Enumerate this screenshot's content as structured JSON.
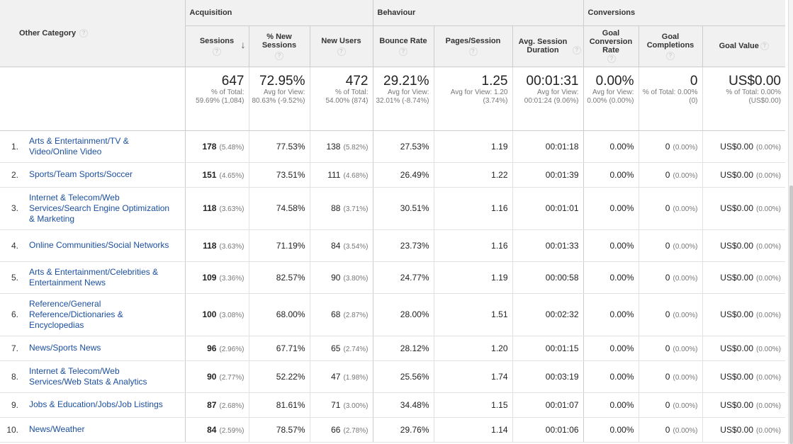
{
  "header": {
    "dimension": "Other Category",
    "groups": {
      "acquisition": "Acquisition",
      "behaviour": "Behaviour",
      "conversions": "Conversions"
    },
    "columns": {
      "sessions": "Sessions",
      "pct_new_sessions": "% New Sessions",
      "new_users": "New Users",
      "bounce_rate": "Bounce Rate",
      "pages_session": "Pages/Session",
      "avg_session_duration": "Avg. Session Duration",
      "goal_conversion_rate": "Goal Conversion Rate",
      "goal_completions": "Goal Completions",
      "goal_value": "Goal Value"
    },
    "help": "?",
    "sort_icon": "↓"
  },
  "totals": {
    "sessions": {
      "value": "647",
      "sub": "% of Total: 59.69% (1,084)"
    },
    "pct_new_sessions": {
      "value": "72.95%",
      "sub": "Avg for View: 80.63% (-9.52%)"
    },
    "new_users": {
      "value": "472",
      "sub": "% of Total: 54.00% (874)"
    },
    "bounce_rate": {
      "value": "29.21%",
      "sub": "Avg for View: 32.01% (-8.74%)"
    },
    "pages_session": {
      "value": "1.25",
      "sub": "Avg for View: 1.20 (3.74%)"
    },
    "avg_session_duration": {
      "value": "00:01:31",
      "sub": "Avg for View: 00:01:24 (9.06%)"
    },
    "goal_conversion_rate": {
      "value": "0.00%",
      "sub": "Avg for View: 0.00% (0.00%)"
    },
    "goal_completions": {
      "value": "0",
      "sub": "% of Total: 0.00% (0)"
    },
    "goal_value": {
      "value": "US$0.00",
      "sub": "% of Total: 0.00% (US$0.00)"
    }
  },
  "rows": [
    {
      "idx": "1.",
      "category": "Arts & Entertainment/TV & Video/Online Video",
      "sessions": "178",
      "sessions_pct": "(5.48%)",
      "pct_new": "77.53%",
      "new_users": "138",
      "new_users_pct": "(5.82%)",
      "bounce": "27.53%",
      "pages": "1.19",
      "duration": "00:01:18",
      "conv_rate": "0.00%",
      "completions": "0",
      "completions_pct": "(0.00%)",
      "value": "US$0.00",
      "value_pct": "(0.00%)"
    },
    {
      "idx": "2.",
      "category": "Sports/Team Sports/Soccer",
      "sessions": "151",
      "sessions_pct": "(4.65%)",
      "pct_new": "73.51%",
      "new_users": "111",
      "new_users_pct": "(4.68%)",
      "bounce": "26.49%",
      "pages": "1.22",
      "duration": "00:01:39",
      "conv_rate": "0.00%",
      "completions": "0",
      "completions_pct": "(0.00%)",
      "value": "US$0.00",
      "value_pct": "(0.00%)"
    },
    {
      "idx": "3.",
      "category": "Internet & Telecom/Web Services/Search Engine Optimization & Marketing",
      "sessions": "118",
      "sessions_pct": "(3.63%)",
      "pct_new": "74.58%",
      "new_users": "88",
      "new_users_pct": "(3.71%)",
      "bounce": "30.51%",
      "pages": "1.16",
      "duration": "00:01:01",
      "conv_rate": "0.00%",
      "completions": "0",
      "completions_pct": "(0.00%)",
      "value": "US$0.00",
      "value_pct": "(0.00%)"
    },
    {
      "idx": "4.",
      "category": "Online Communities/Social Networks",
      "sessions": "118",
      "sessions_pct": "(3.63%)",
      "pct_new": "71.19%",
      "new_users": "84",
      "new_users_pct": "(3.54%)",
      "bounce": "23.73%",
      "pages": "1.16",
      "duration": "00:01:33",
      "conv_rate": "0.00%",
      "completions": "0",
      "completions_pct": "(0.00%)",
      "value": "US$0.00",
      "value_pct": "(0.00%)"
    },
    {
      "idx": "5.",
      "category": "Arts & Entertainment/Celebrities & Entertainment News",
      "sessions": "109",
      "sessions_pct": "(3.36%)",
      "pct_new": "82.57%",
      "new_users": "90",
      "new_users_pct": "(3.80%)",
      "bounce": "24.77%",
      "pages": "1.19",
      "duration": "00:00:58",
      "conv_rate": "0.00%",
      "completions": "0",
      "completions_pct": "(0.00%)",
      "value": "US$0.00",
      "value_pct": "(0.00%)"
    },
    {
      "idx": "6.",
      "category": "Reference/General Reference/Dictionaries & Encyclopedias",
      "sessions": "100",
      "sessions_pct": "(3.08%)",
      "pct_new": "68.00%",
      "new_users": "68",
      "new_users_pct": "(2.87%)",
      "bounce": "28.00%",
      "pages": "1.51",
      "duration": "00:02:32",
      "conv_rate": "0.00%",
      "completions": "0",
      "completions_pct": "(0.00%)",
      "value": "US$0.00",
      "value_pct": "(0.00%)"
    },
    {
      "idx": "7.",
      "category": "News/Sports News",
      "sessions": "96",
      "sessions_pct": "(2.96%)",
      "pct_new": "67.71%",
      "new_users": "65",
      "new_users_pct": "(2.74%)",
      "bounce": "28.12%",
      "pages": "1.20",
      "duration": "00:01:15",
      "conv_rate": "0.00%",
      "completions": "0",
      "completions_pct": "(0.00%)",
      "value": "US$0.00",
      "value_pct": "(0.00%)"
    },
    {
      "idx": "8.",
      "category": "Internet & Telecom/Web Services/Web Stats & Analytics",
      "sessions": "90",
      "sessions_pct": "(2.77%)",
      "pct_new": "52.22%",
      "new_users": "47",
      "new_users_pct": "(1.98%)",
      "bounce": "25.56%",
      "pages": "1.74",
      "duration": "00:03:19",
      "conv_rate": "0.00%",
      "completions": "0",
      "completions_pct": "(0.00%)",
      "value": "US$0.00",
      "value_pct": "(0.00%)"
    },
    {
      "idx": "9.",
      "category": "Jobs & Education/Jobs/Job Listings",
      "sessions": "87",
      "sessions_pct": "(2.68%)",
      "pct_new": "81.61%",
      "new_users": "71",
      "new_users_pct": "(3.00%)",
      "bounce": "34.48%",
      "pages": "1.15",
      "duration": "00:01:07",
      "conv_rate": "0.00%",
      "completions": "0",
      "completions_pct": "(0.00%)",
      "value": "US$0.00",
      "value_pct": "(0.00%)"
    },
    {
      "idx": "10.",
      "category": "News/Weather",
      "sessions": "84",
      "sessions_pct": "(2.59%)",
      "pct_new": "78.57%",
      "new_users": "66",
      "new_users_pct": "(2.78%)",
      "bounce": "29.76%",
      "pages": "1.14",
      "duration": "00:01:06",
      "conv_rate": "0.00%",
      "completions": "0",
      "completions_pct": "(0.00%)",
      "value": "US$0.00",
      "value_pct": "(0.00%)"
    }
  ]
}
